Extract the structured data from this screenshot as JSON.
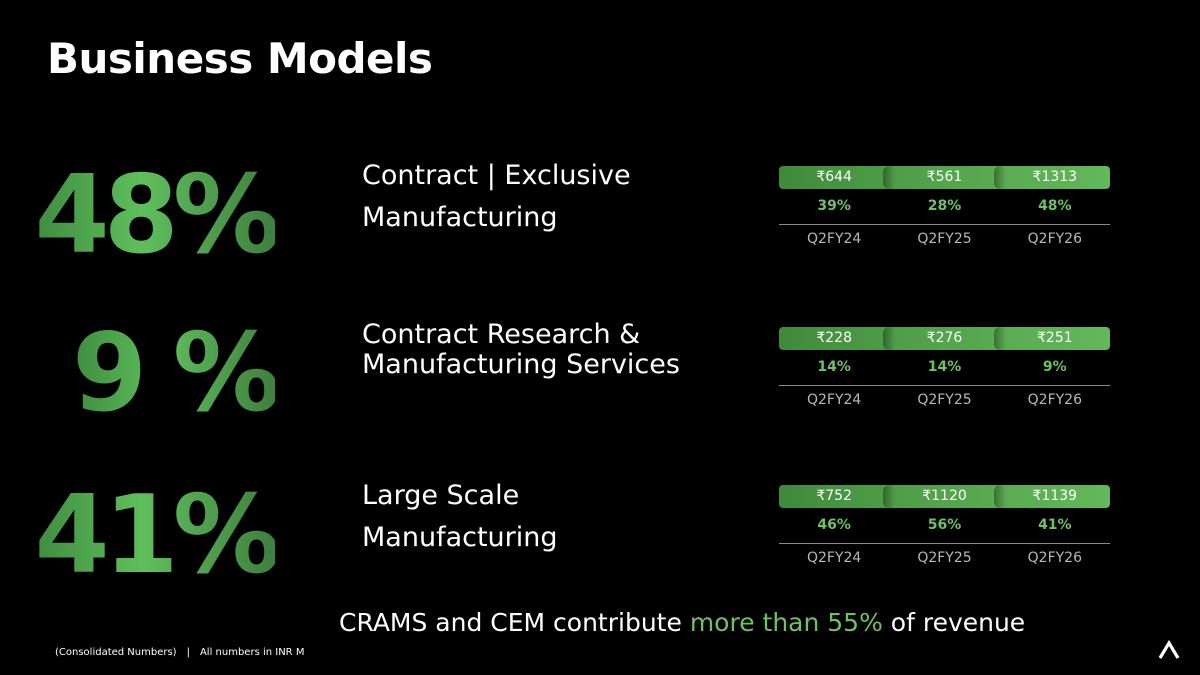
{
  "page": {
    "title": "Business Models"
  },
  "segments": [
    {
      "share": "48%",
      "label_line1": "Contract | Exclusive",
      "label_line2": "Manufacturing",
      "values": [
        "₹644",
        "₹561",
        "₹1313"
      ],
      "percents": [
        "39%",
        "28%",
        "48%"
      ],
      "periods": [
        "Q2FY24",
        "Q2FY25",
        "Q2FY26"
      ]
    },
    {
      "share": "9 %",
      "label_line1": "Contract Research &",
      "label_line2": "Manufacturing Services",
      "values": [
        "₹228",
        "₹276",
        "₹251"
      ],
      "percents": [
        "14%",
        "14%",
        "9%"
      ],
      "periods": [
        "Q2FY24",
        "Q2FY25",
        "Q2FY26"
      ]
    },
    {
      "share": "41%",
      "label_line1": "Large Scale",
      "label_line2": "Manufacturing",
      "values": [
        "₹752",
        "₹1120",
        "₹1139"
      ],
      "percents": [
        "46%",
        "56%",
        "41%"
      ],
      "periods": [
        "Q2FY24",
        "Q2FY25",
        "Q2FY26"
      ]
    }
  ],
  "summary": {
    "prefix": "CRAMS and CEM contribute ",
    "highlight": "more than 55%",
    "suffix": " of revenue"
  },
  "footnote": {
    "left": "(Consolidated Numbers)",
    "separator": "|",
    "right": "All numbers in INR M"
  },
  "colors": {
    "accent": "#6cc360",
    "bar": "#4e9e47",
    "background": "#000000"
  },
  "icons": {
    "logo": "caret-up-logo-icon"
  }
}
